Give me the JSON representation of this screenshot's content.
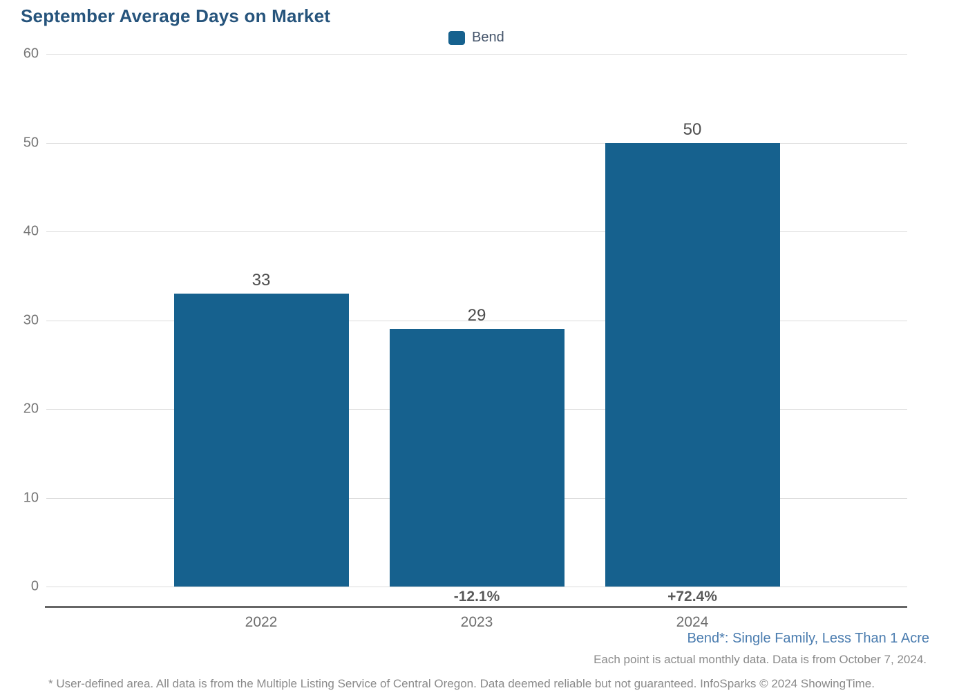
{
  "title": "September Average Days on Market",
  "legend": {
    "label": "Bend"
  },
  "chart_data": {
    "type": "bar",
    "title": "September Average Days on Market",
    "series_name": "Bend",
    "categories": [
      "2022",
      "2023",
      "2024"
    ],
    "values": [
      33,
      29,
      50
    ],
    "value_labels": [
      "33",
      "29",
      "50"
    ],
    "pct_change_labels": [
      "",
      "-12.1%",
      "+72.4%"
    ],
    "xlabel": "",
    "ylabel": "",
    "ylim": [
      0,
      60
    ],
    "yticks": [
      0,
      10,
      20,
      30,
      40,
      50,
      60
    ],
    "grid": true,
    "legend_position": "top-center",
    "bar_color": "#16618E"
  },
  "annotations": {
    "series_note": "Bend*: Single Family, Less Than 1 Acre",
    "data_note": "Each point is actual monthly data. Data is from October 7, 2024.",
    "footnote": "* User-defined area. All data is from the Multiple Listing Service of Central Oregon. Data deemed reliable but not guaranteed. InfoSparks © 2024 ShowingTime."
  },
  "colors": {
    "bar": "#16618E",
    "title": "#26547C",
    "series-note": "#4A7CAF",
    "axis": "#666666",
    "grid": "#DCDCDC",
    "text-muted": "#8A8A8A"
  }
}
